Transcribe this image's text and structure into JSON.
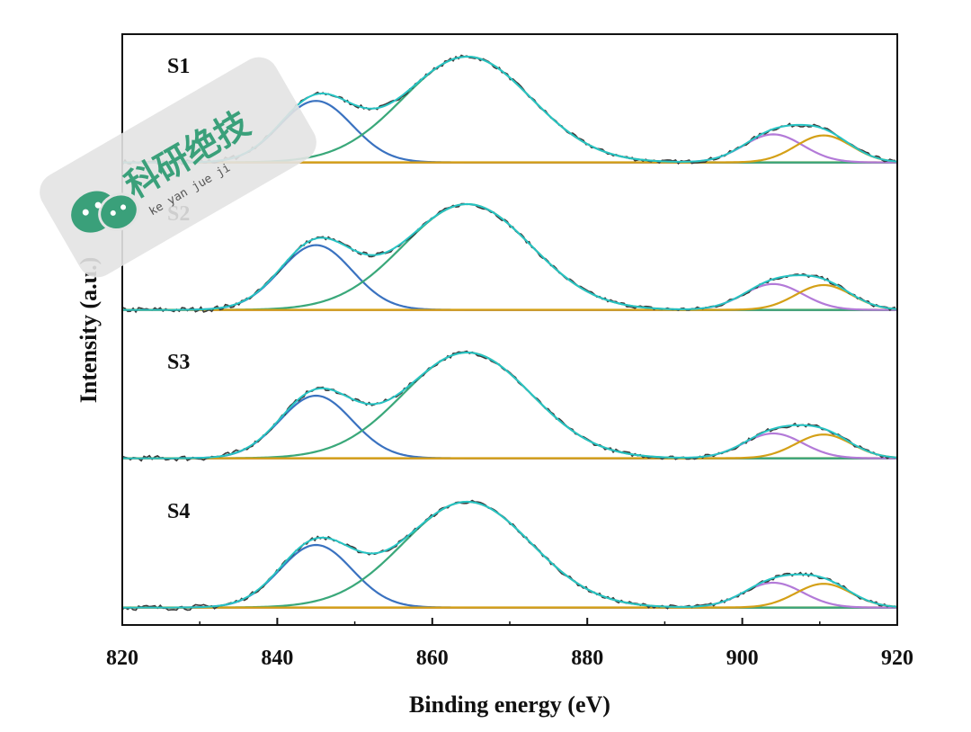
{
  "chart_data": {
    "type": "line",
    "title": "",
    "xlabel": "Binding energy (eV)",
    "ylabel": "Intensity (a.u.)",
    "xlim": [
      820,
      920
    ],
    "x_ticks": [
      820,
      840,
      860,
      880,
      900,
      920
    ],
    "y_ticks": "none",
    "legend": "none",
    "panel_layout": "stacked-vertical",
    "colors": {
      "raw": "#3a3a3a",
      "envelope": "#27c4c4",
      "peak1": "#3a72c0",
      "peak2": "#3aa87a",
      "peak3": "#b37ad8",
      "peak4": "#d4a017",
      "baseline": "#d4a017"
    },
    "panels": [
      {
        "label": "S1",
        "background": 0.02,
        "peaks": [
          {
            "name": "peak-1",
            "center": 845.0,
            "height": 0.57,
            "fwhm": 11.0,
            "color_key": "peak1"
          },
          {
            "name": "peak-2",
            "center": 864.5,
            "height": 0.98,
            "fwhm": 19.5,
            "color_key": "peak2"
          },
          {
            "name": "peak-3",
            "center": 904.0,
            "height": 0.26,
            "fwhm": 9.0,
            "color_key": "peak3"
          },
          {
            "name": "peak-4",
            "center": 910.5,
            "height": 0.25,
            "fwhm": 8.5,
            "color_key": "peak4"
          }
        ]
      },
      {
        "label": "S2",
        "background": 0.02,
        "peaks": [
          {
            "name": "peak-1",
            "center": 845.0,
            "height": 0.6,
            "fwhm": 11.0,
            "color_key": "peak1"
          },
          {
            "name": "peak-2",
            "center": 864.5,
            "height": 0.98,
            "fwhm": 19.5,
            "color_key": "peak2"
          },
          {
            "name": "peak-3",
            "center": 904.0,
            "height": 0.24,
            "fwhm": 9.0,
            "color_key": "peak3"
          },
          {
            "name": "peak-4",
            "center": 910.5,
            "height": 0.23,
            "fwhm": 8.5,
            "color_key": "peak4"
          }
        ]
      },
      {
        "label": "S3",
        "background": 0.02,
        "peaks": [
          {
            "name": "peak-1",
            "center": 845.0,
            "height": 0.58,
            "fwhm": 11.0,
            "color_key": "peak1"
          },
          {
            "name": "peak-2",
            "center": 864.5,
            "height": 0.98,
            "fwhm": 19.5,
            "color_key": "peak2"
          },
          {
            "name": "peak-3",
            "center": 904.0,
            "height": 0.23,
            "fwhm": 9.0,
            "color_key": "peak3"
          },
          {
            "name": "peak-4",
            "center": 910.5,
            "height": 0.22,
            "fwhm": 8.5,
            "color_key": "peak4"
          }
        ]
      },
      {
        "label": "S4",
        "background": 0.02,
        "peaks": [
          {
            "name": "peak-1",
            "center": 845.0,
            "height": 0.58,
            "fwhm": 11.0,
            "color_key": "peak1"
          },
          {
            "name": "peak-2",
            "center": 864.5,
            "height": 0.98,
            "fwhm": 19.5,
            "color_key": "peak2"
          },
          {
            "name": "peak-3",
            "center": 904.0,
            "height": 0.23,
            "fwhm": 9.0,
            "color_key": "peak3"
          },
          {
            "name": "peak-4",
            "center": 910.5,
            "height": 0.22,
            "fwhm": 8.5,
            "color_key": "peak4"
          }
        ]
      }
    ]
  },
  "watermark": {
    "text_cn": "科研绝技",
    "text_pinyin": "ke yan jue ji",
    "icon": "wechat-icon",
    "icon_color": "#3aa07a"
  }
}
